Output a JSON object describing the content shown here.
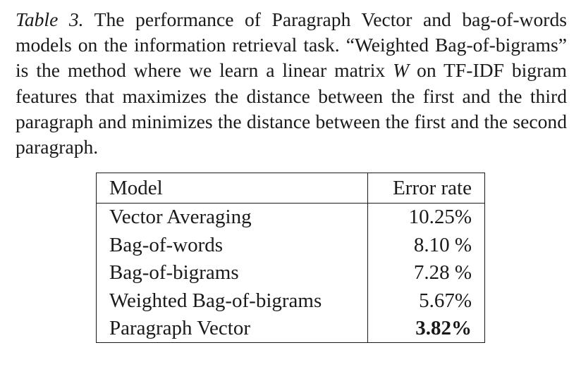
{
  "caption": {
    "label": "Table 3.",
    "part1": " The performance of Paragraph Vector and bag-of-words models on the information retrieval task.  “Weighted Bag-of-bigrams” is the method where we learn a linear matrix ",
    "variable": "W",
    "part2": " on TF-IDF bigram features that maximizes the distance between the first and the third paragraph and minimizes the distance between the first and the second paragraph."
  },
  "table": {
    "headers": {
      "model": "Model",
      "error": "Error rate"
    },
    "rows": [
      {
        "model": "Vector Averaging",
        "error": "10.25%",
        "bold": false
      },
      {
        "model": "Bag-of-words",
        "error": "8.10 %",
        "bold": false
      },
      {
        "model": "Bag-of-bigrams",
        "error": "7.28 %",
        "bold": false
      },
      {
        "model": "Weighted Bag-of-bigrams",
        "error": "5.67%",
        "bold": false
      },
      {
        "model": "Paragraph Vector",
        "error": "3.82%",
        "bold": true
      }
    ]
  }
}
